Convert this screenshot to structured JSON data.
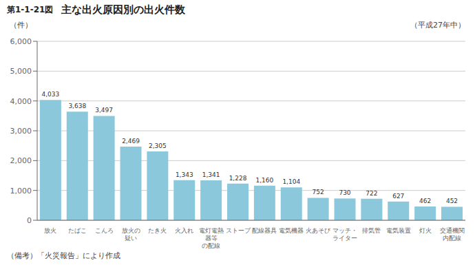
{
  "chart_data": {
    "type": "bar",
    "title": "主な出火原因別の出火件数",
    "subtitle": "（平成27年中）",
    "ylabel": "（件）",
    "annotations": [
      "第1-1-21図",
      "（備考）「火災報告」により作成"
    ],
    "categories": [
      "放火",
      "たばこ",
      "こんろ",
      "放火の\n疑い",
      "たき火",
      "火入れ",
      "電灯電熱器等\nの配線",
      "ストーブ",
      "配線器具",
      "電気機器",
      "火あそび",
      "マッチ・\nライター",
      "排気管",
      "電気装置",
      "灯火",
      "交通機関\n内配線"
    ],
    "values": [
      4033,
      3638,
      3497,
      2469,
      2305,
      1343,
      1341,
      1228,
      1160,
      1104,
      752,
      730,
      722,
      627,
      462,
      452
    ],
    "value_labels": [
      "4,033",
      "3,638",
      "3,497",
      "2,469",
      "2,305",
      "1,343",
      "1,341",
      "1,228",
      "1,160",
      "1,104",
      "752",
      "730",
      "722",
      "627",
      "462",
      "452"
    ],
    "data_labels": true,
    "color": "#8cc8dc",
    "ylim": [
      0,
      6000
    ],
    "yticks": [
      0,
      {
        "value": 1000,
        "label": "1,000"
      },
      {
        "value": 2000,
        "label": "2,000"
      },
      {
        "value": 3000,
        "label": "3,000"
      },
      {
        "value": 4000,
        "label": "4,000"
      },
      {
        "value": 5000,
        "label": "5,000"
      },
      {
        "value": 6000,
        "label": "6,000"
      }
    ],
    "grid": true
  }
}
